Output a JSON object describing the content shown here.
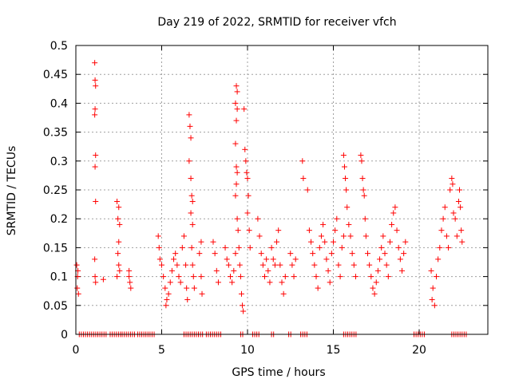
{
  "chart_data": {
    "type": "scatter",
    "title": "Day 219 of 2022, SRMTID for receiver vfch",
    "xlabel": "GPS time / hours",
    "ylabel": "SRMTID / TECUs",
    "xlim": [
      0,
      24
    ],
    "ylim": [
      0,
      0.5
    ],
    "grid": true,
    "marker": "+",
    "marker_color": "#ff0000",
    "xticks": [
      0,
      5,
      10,
      15,
      20
    ],
    "xtick_labels": [
      "0",
      "5",
      "10",
      "15",
      "20"
    ],
    "yticks": [
      0,
      0.05,
      0.1,
      0.15,
      0.2,
      0.25,
      0.3,
      0.35,
      0.4,
      0.45,
      0.5
    ],
    "ytick_labels": [
      "0",
      "0.05",
      "0.1",
      "0.15",
      "0.2",
      "0.25",
      "0.3",
      "0.35",
      "0.4",
      "0.45",
      "0.5"
    ],
    "series": [
      {
        "name": "SRMTID",
        "points": [
          [
            0.05,
            0.12
          ],
          [
            0.08,
            0.08
          ],
          [
            0.1,
            0.1
          ],
          [
            0.12,
            0.11
          ],
          [
            0.15,
            0.07
          ],
          [
            1.1,
            0.47
          ],
          [
            1.12,
            0.44
          ],
          [
            1.15,
            0.43
          ],
          [
            1.1,
            0.38
          ],
          [
            1.12,
            0.39
          ],
          [
            1.15,
            0.31
          ],
          [
            1.12,
            0.29
          ],
          [
            1.15,
            0.23
          ],
          [
            1.1,
            0.13
          ],
          [
            1.12,
            0.1
          ],
          [
            1.15,
            0.09
          ],
          [
            1.6,
            0.095
          ],
          [
            2.4,
            0.23
          ],
          [
            2.5,
            0.22
          ],
          [
            2.45,
            0.2
          ],
          [
            2.55,
            0.19
          ],
          [
            2.5,
            0.16
          ],
          [
            2.45,
            0.14
          ],
          [
            2.5,
            0.12
          ],
          [
            2.55,
            0.11
          ],
          [
            2.4,
            0.1
          ],
          [
            3.1,
            0.1
          ],
          [
            3.15,
            0.09
          ],
          [
            3.2,
            0.08
          ],
          [
            3.1,
            0.11
          ],
          [
            4.8,
            0.17
          ],
          [
            4.85,
            0.15
          ],
          [
            4.9,
            0.13
          ],
          [
            5.0,
            0.12
          ],
          [
            5.1,
            0.1
          ],
          [
            5.2,
            0.08
          ],
          [
            5.3,
            0.06
          ],
          [
            5.25,
            0.05
          ],
          [
            5.4,
            0.07
          ],
          [
            5.5,
            0.09
          ],
          [
            5.6,
            0.11
          ],
          [
            5.7,
            0.13
          ],
          [
            5.8,
            0.14
          ],
          [
            5.9,
            0.12
          ],
          [
            6.0,
            0.1
          ],
          [
            6.1,
            0.09
          ],
          [
            6.2,
            0.15
          ],
          [
            6.3,
            0.17
          ],
          [
            6.4,
            0.12
          ],
          [
            6.45,
            0.08
          ],
          [
            6.5,
            0.06
          ],
          [
            6.6,
            0.38
          ],
          [
            6.65,
            0.36
          ],
          [
            6.7,
            0.34
          ],
          [
            6.6,
            0.3
          ],
          [
            6.7,
            0.27
          ],
          [
            6.75,
            0.24
          ],
          [
            6.8,
            0.23
          ],
          [
            6.7,
            0.21
          ],
          [
            6.8,
            0.19
          ],
          [
            6.75,
            0.15
          ],
          [
            6.8,
            0.12
          ],
          [
            6.85,
            0.1
          ],
          [
            6.9,
            0.08
          ],
          [
            7.2,
            0.14
          ],
          [
            7.3,
            0.1
          ],
          [
            7.35,
            0.07
          ],
          [
            7.3,
            0.16
          ],
          [
            8.0,
            0.16
          ],
          [
            8.1,
            0.14
          ],
          [
            8.2,
            0.11
          ],
          [
            8.3,
            0.09
          ],
          [
            8.7,
            0.15
          ],
          [
            8.8,
            0.13
          ],
          [
            8.9,
            0.12
          ],
          [
            9.0,
            0.1
          ],
          [
            9.1,
            0.09
          ],
          [
            9.2,
            0.11
          ],
          [
            9.3,
            0.14
          ],
          [
            9.35,
            0.43
          ],
          [
            9.4,
            0.42
          ],
          [
            9.3,
            0.4
          ],
          [
            9.4,
            0.39
          ],
          [
            9.35,
            0.37
          ],
          [
            9.3,
            0.33
          ],
          [
            9.35,
            0.29
          ],
          [
            9.4,
            0.28
          ],
          [
            9.35,
            0.26
          ],
          [
            9.3,
            0.24
          ],
          [
            9.4,
            0.2
          ],
          [
            9.45,
            0.18
          ],
          [
            9.5,
            0.15
          ],
          [
            9.55,
            0.12
          ],
          [
            9.6,
            0.1
          ],
          [
            9.65,
            0.07
          ],
          [
            9.7,
            0.05
          ],
          [
            9.75,
            0.04
          ],
          [
            9.8,
            0.39
          ],
          [
            9.85,
            0.32
          ],
          [
            9.9,
            0.3
          ],
          [
            9.95,
            0.28
          ],
          [
            10.0,
            0.27
          ],
          [
            10.05,
            0.24
          ],
          [
            10.0,
            0.21
          ],
          [
            10.1,
            0.18
          ],
          [
            10.15,
            0.15
          ],
          [
            10.6,
            0.2
          ],
          [
            10.7,
            0.17
          ],
          [
            10.8,
            0.14
          ],
          [
            10.9,
            0.12
          ],
          [
            11.0,
            0.1
          ],
          [
            11.1,
            0.13
          ],
          [
            11.2,
            0.11
          ],
          [
            11.3,
            0.09
          ],
          [
            11.4,
            0.15
          ],
          [
            11.5,
            0.13
          ],
          [
            11.6,
            0.12
          ],
          [
            11.7,
            0.16
          ],
          [
            11.8,
            0.18
          ],
          [
            11.9,
            0.12
          ],
          [
            12.0,
            0.09
          ],
          [
            12.1,
            0.07
          ],
          [
            12.2,
            0.1
          ],
          [
            12.5,
            0.14
          ],
          [
            12.6,
            0.12
          ],
          [
            12.7,
            0.1
          ],
          [
            12.8,
            0.13
          ],
          [
            13.2,
            0.3
          ],
          [
            13.25,
            0.27
          ],
          [
            13.5,
            0.25
          ],
          [
            13.6,
            0.18
          ],
          [
            13.7,
            0.16
          ],
          [
            13.8,
            0.14
          ],
          [
            13.9,
            0.12
          ],
          [
            14.0,
            0.1
          ],
          [
            14.1,
            0.08
          ],
          [
            14.2,
            0.15
          ],
          [
            14.3,
            0.17
          ],
          [
            14.4,
            0.19
          ],
          [
            14.5,
            0.16
          ],
          [
            14.6,
            0.13
          ],
          [
            14.7,
            0.11
          ],
          [
            14.8,
            0.09
          ],
          [
            14.9,
            0.14
          ],
          [
            15.0,
            0.16
          ],
          [
            15.1,
            0.18
          ],
          [
            15.2,
            0.2
          ],
          [
            15.3,
            0.12
          ],
          [
            15.4,
            0.1
          ],
          [
            15.5,
            0.15
          ],
          [
            15.6,
            0.17
          ],
          [
            15.6,
            0.31
          ],
          [
            15.65,
            0.29
          ],
          [
            15.7,
            0.27
          ],
          [
            15.75,
            0.25
          ],
          [
            15.8,
            0.22
          ],
          [
            15.9,
            0.19
          ],
          [
            16.0,
            0.17
          ],
          [
            16.1,
            0.14
          ],
          [
            16.2,
            0.12
          ],
          [
            16.3,
            0.1
          ],
          [
            16.6,
            0.31
          ],
          [
            16.65,
            0.3
          ],
          [
            16.7,
            0.27
          ],
          [
            16.75,
            0.25
          ],
          [
            16.8,
            0.24
          ],
          [
            16.85,
            0.2
          ],
          [
            16.9,
            0.17
          ],
          [
            17.0,
            0.14
          ],
          [
            17.1,
            0.12
          ],
          [
            17.2,
            0.1
          ],
          [
            17.3,
            0.08
          ],
          [
            17.4,
            0.07
          ],
          [
            17.5,
            0.09
          ],
          [
            17.6,
            0.11
          ],
          [
            17.7,
            0.13
          ],
          [
            17.8,
            0.15
          ],
          [
            17.9,
            0.17
          ],
          [
            18.0,
            0.14
          ],
          [
            18.1,
            0.12
          ],
          [
            18.2,
            0.1
          ],
          [
            18.3,
            0.16
          ],
          [
            18.4,
            0.19
          ],
          [
            18.5,
            0.21
          ],
          [
            18.6,
            0.22
          ],
          [
            18.7,
            0.18
          ],
          [
            18.8,
            0.15
          ],
          [
            18.9,
            0.13
          ],
          [
            19.0,
            0.11
          ],
          [
            19.1,
            0.14
          ],
          [
            19.2,
            0.16
          ],
          [
            20.7,
            0.11
          ],
          [
            20.8,
            0.08
          ],
          [
            20.75,
            0.06
          ],
          [
            20.9,
            0.05
          ],
          [
            21.0,
            0.1
          ],
          [
            21.1,
            0.13
          ],
          [
            21.2,
            0.15
          ],
          [
            21.3,
            0.18
          ],
          [
            21.4,
            0.2
          ],
          [
            21.5,
            0.22
          ],
          [
            21.6,
            0.17
          ],
          [
            21.7,
            0.15
          ],
          [
            21.8,
            0.25
          ],
          [
            21.9,
            0.27
          ],
          [
            21.95,
            0.26
          ],
          [
            22.0,
            0.21
          ],
          [
            22.1,
            0.2
          ],
          [
            22.2,
            0.17
          ],
          [
            22.3,
            0.23
          ],
          [
            22.35,
            0.25
          ],
          [
            22.4,
            0.22
          ],
          [
            22.45,
            0.18
          ],
          [
            22.5,
            0.16
          ]
        ],
        "zero_ranges": [
          [
            0.2,
            1.8
          ],
          [
            2.0,
            2.6
          ],
          [
            2.7,
            3.5
          ],
          [
            3.6,
            4.6
          ],
          [
            6.3,
            7.4
          ],
          [
            7.6,
            8.5
          ],
          [
            9.6,
            9.8
          ],
          [
            10.3,
            10.7
          ],
          [
            11.4,
            11.6
          ],
          [
            12.4,
            12.6
          ],
          [
            13.1,
            13.5
          ],
          [
            15.6,
            16.4
          ],
          [
            19.7,
            20.4
          ],
          [
            21.9,
            22.8
          ]
        ]
      }
    ]
  }
}
